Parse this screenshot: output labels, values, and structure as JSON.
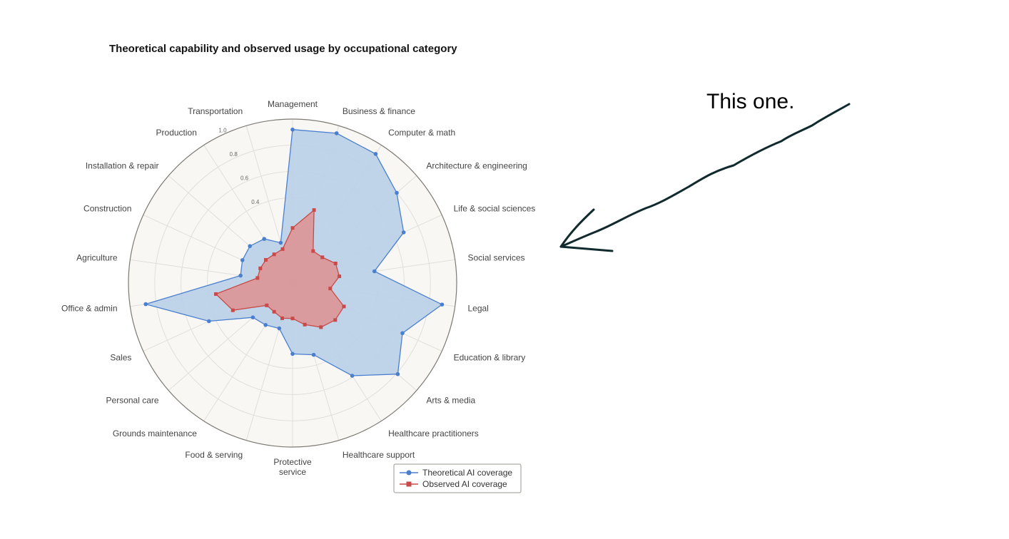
{
  "title": "Theoretical capability and observed usage by occupational category",
  "annotation": "This one.",
  "colors": {
    "theoretical": "#4a7fd0",
    "theoretical_fill": "#b9cfe8",
    "observed": "#c94a48",
    "observed_fill": "#de9191",
    "plot_background": "#f8f7f4",
    "grid": "#e1dfda",
    "frame": "#7c7972",
    "arrow": "#102a2d"
  },
  "chart_data": {
    "type": "radar",
    "title": "Theoretical capability and observed usage by occupational category",
    "categories": [
      "Management",
      "Business & finance",
      "Computer & math",
      "Architecture & engineering",
      "Life & social sciences",
      "Social services",
      "Legal",
      "Education & library",
      "Arts & media",
      "Healthcare practitioners",
      "Healthcare support",
      "Protective service",
      "Food & serving",
      "Grounds maintenance",
      "Personal care",
      "Sales",
      "Office & admin",
      "Agriculture",
      "Construction",
      "Installation & repair",
      "Production",
      "Transportation"
    ],
    "radial_ticks": [
      "0.4",
      "0.6",
      "0.8",
      "1.0"
    ],
    "rlim": [
      0,
      1
    ],
    "grid": true,
    "legend_position": "bottom-right",
    "series": [
      {
        "name": "Theoretical AI coverage",
        "marker": "circle",
        "values": [
          0.92,
          0.94,
          0.92,
          0.8,
          0.68,
          0.38,
          0.9,
          0.67,
          0.81,
          0.59,
          0.32,
          0.29,
          0.11,
          0.13,
          0.15,
          0.45,
          0.88,
          0.15,
          0.17,
          0.18,
          0.15,
          0.07
        ]
      },
      {
        "name": "Observed AI coverage",
        "marker": "square",
        "values": [
          0.17,
          0.33,
          0.04,
          0.05,
          0.11,
          0.11,
          0.04,
          0.18,
          0.18,
          0.15,
          0.08,
          0.02,
          0.03,
          0.01,
          0.01,
          0.25,
          0.34,
          0.02,
          0.02,
          0.02,
          0.01,
          0.02
        ]
      }
    ]
  }
}
